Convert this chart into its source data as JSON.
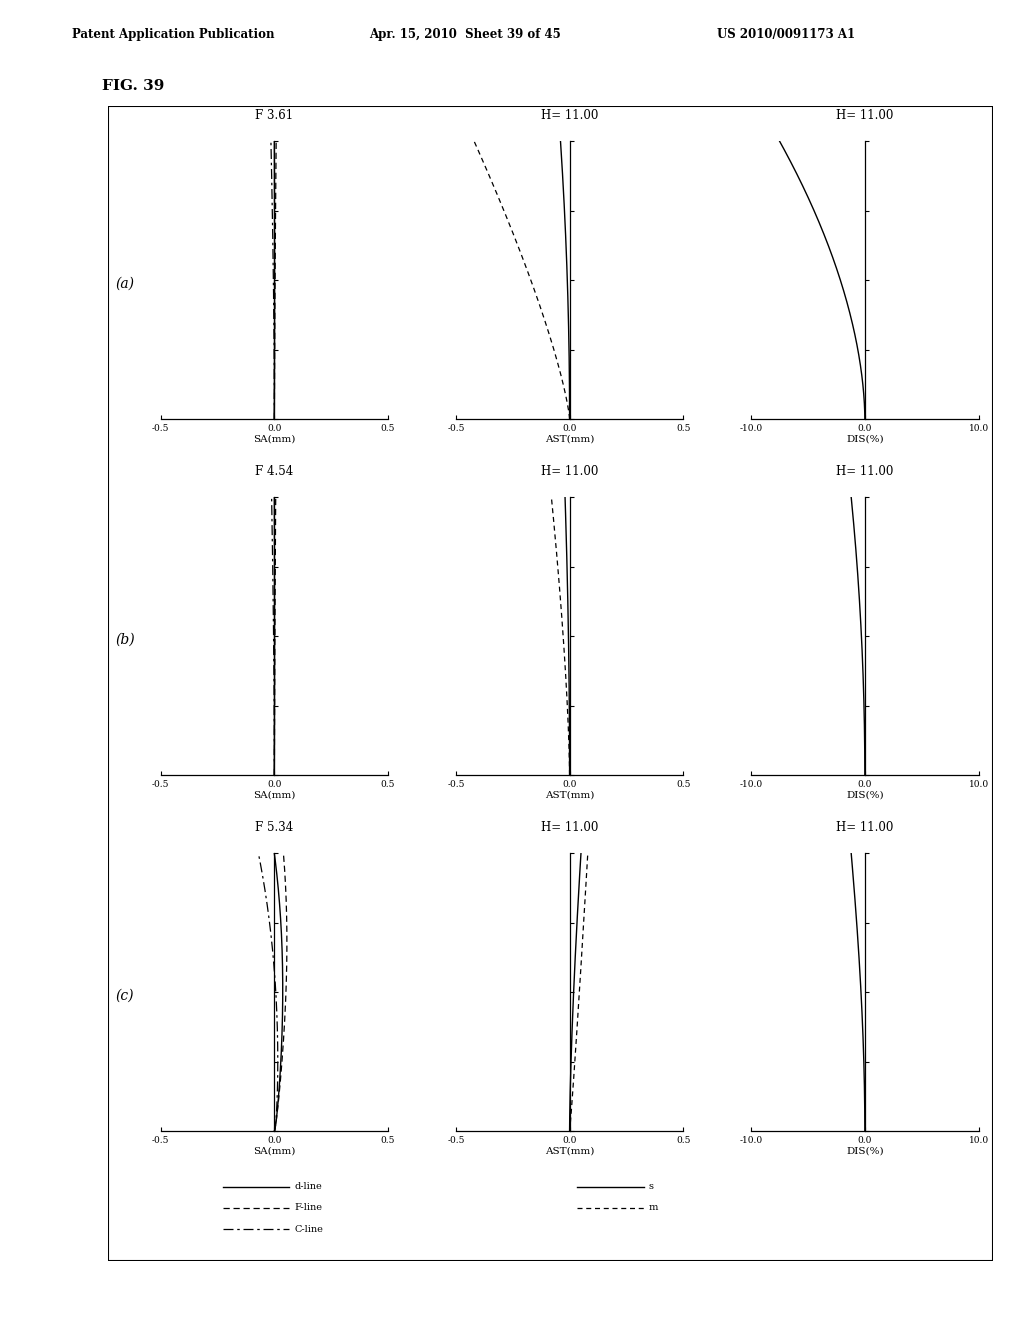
{
  "header_left": "Patent Application Publication",
  "header_mid": "Apr. 15, 2010  Sheet 39 of 45",
  "header_right": "US 2010/0091173 A1",
  "fig_label": "FIG. 39",
  "rows": [
    {
      "label": "(a)",
      "f_label": "F 3.61",
      "h_label": "H= 11.00"
    },
    {
      "label": "(b)",
      "f_label": "F 4.54",
      "h_label": "H= 11.00"
    },
    {
      "label": "(c)",
      "f_label": "F 5.34",
      "h_label": "H= 11.00"
    }
  ],
  "background_color": "#ffffff"
}
